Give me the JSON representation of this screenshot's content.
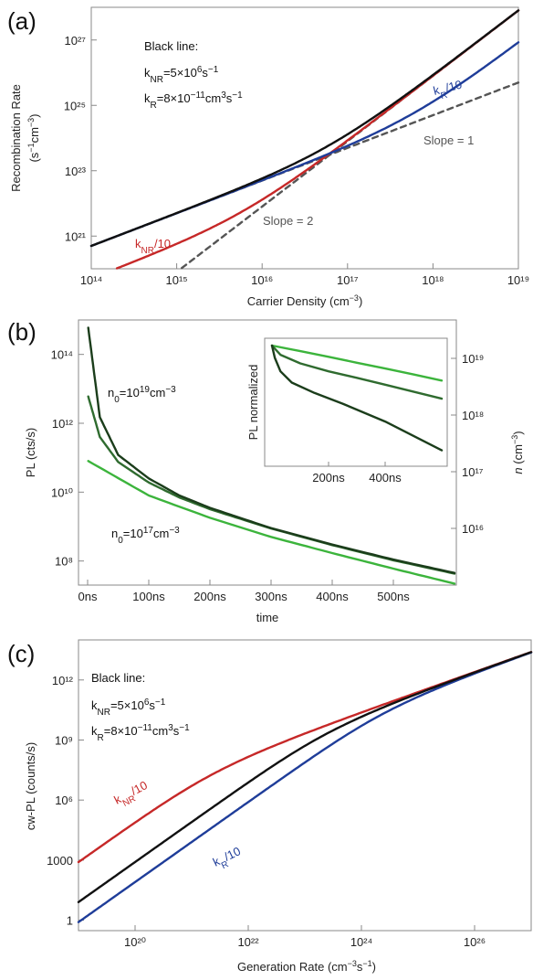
{
  "colors": {
    "black": "#111111",
    "red": "#c62828",
    "blue": "#1f3d99",
    "gray_dashed": "#555555",
    "green_dark": "#1b3d1b",
    "green_mid": "#2f6b2f",
    "green_light": "#3cb43c",
    "blue_dashed": "#5577bb"
  },
  "chart_data": [
    {
      "panel": "(a)",
      "type": "line",
      "xlabel": "Carrier Density (cm⁻³)",
      "ylabel_line1": "Recombination Rate",
      "ylabel_line2": "(s⁻¹cm⁻³)",
      "x_log": true,
      "y_log": true,
      "xlim": [
        100000000000000.0,
        1e+19
      ],
      "ylim": [
        1e+20,
        1e+28
      ],
      "x_ticks": [
        "10¹⁴",
        "10¹⁵",
        "10¹⁶",
        "10¹⁷",
        "10¹⁸",
        "10¹⁹"
      ],
      "y_ticks": [
        "10²¹",
        "10²³",
        "10²⁵",
        "10²⁷"
      ],
      "annotation_title": "Black line:",
      "annotation_knr": "kₙᵣ=5×10⁶s⁻¹",
      "annotation_kr": "kᵣ=8×10⁻¹¹cm³s⁻¹",
      "params": {
        "k_NR": 5000000.0,
        "k_R": 8e-11
      },
      "series": [
        {
          "name": "Black line",
          "formula": "k_NR*n + k_R*n^2",
          "color": "black"
        },
        {
          "name": "k_NR/10",
          "formula": "k_NR/10*n + k_R*n^2",
          "color": "red"
        },
        {
          "name": "k_R/10",
          "formula": "k_NR*n + k_R/10*n^2",
          "color": "blue"
        },
        {
          "name": "Slope = 1",
          "formula": "k_NR*n",
          "style": "dashed"
        },
        {
          "name": "Slope = 2",
          "formula": "k_R*n^2",
          "style": "dashed"
        }
      ],
      "labels": {
        "knr10": "kₙᵣ/10",
        "kr10": "kᵣ/10",
        "slope1": "Slope = 1",
        "slope2": "Slope = 2"
      }
    },
    {
      "panel": "(b)",
      "type": "line",
      "xlabel": "time",
      "ylabel": "PL (cts/s)",
      "y2label": "n (cm⁻³)",
      "xlim": [
        0,
        600
      ],
      "ylim": [
        20000000.0,
        1000000000000000.0
      ],
      "x_ticks": [
        "0ns",
        "100ns",
        "200ns",
        "300ns",
        "400ns",
        "500ns"
      ],
      "y_ticks": [
        "10⁸",
        "10¹⁰",
        "10¹²",
        "10¹⁴"
      ],
      "y2_ticks": [
        "10¹⁶",
        "10¹⁷",
        "10¹⁸",
        "10¹⁹"
      ],
      "label_high": "n₀=10¹⁹cm⁻³",
      "label_low": "n₀=10¹⁷cm⁻³",
      "series": [
        {
          "name": "n0=1e19",
          "x": [
            1,
            20,
            50,
            100,
            150,
            200,
            300,
            400,
            500,
            600
          ],
          "y": [
            600000000000000.0,
            1500000000000.0,
            120000000000.0,
            25000000000.0,
            8000000000.0,
            3500000000.0,
            900000000.0,
            300000000.0,
            110000000.0,
            45000000.0
          ],
          "color": "dark"
        },
        {
          "name": "n0=1e18",
          "x": [
            1,
            20,
            50,
            100,
            150,
            200,
            300,
            400,
            500,
            600
          ],
          "y": [
            6000000000000.0,
            400000000000.0,
            75000000000.0,
            19000000000.0,
            7000000000.0,
            3200000000.0,
            880000000.0,
            290000000.0,
            105000000.0,
            43000000.0
          ],
          "color": "mid"
        },
        {
          "name": "n0=1e17",
          "x": [
            1,
            100,
            200,
            300,
            400,
            500,
            600
          ],
          "y": [
            80000000000.0,
            8000000000.0,
            1800000000.0,
            500000000.0,
            170000000.0,
            60000000.0,
            22000000.0
          ],
          "color": "light"
        }
      ],
      "inset": {
        "ylabel": "PL normalized",
        "x_ticks": [
          "200ns",
          "400ns"
        ],
        "xlim": [
          0,
          600
        ],
        "series": [
          {
            "name": "n0=1e17",
            "x": [
              0,
              100,
              200,
              300,
              400,
              500,
              600
            ],
            "y": [
              1.0,
              0.86,
              0.74,
              0.63,
              0.54,
              0.46,
              0.39
            ]
          },
          {
            "name": "n0=1e18",
            "x": [
              0,
              30,
              100,
              200,
              300,
              400,
              500,
              600
            ],
            "y": [
              1.0,
              0.78,
              0.62,
              0.5,
              0.42,
              0.35,
              0.29,
              0.24
            ]
          },
          {
            "name": "n0=1e19",
            "x": [
              0,
              10,
              30,
              70,
              150,
              250,
              400,
              600
            ],
            "y": [
              1.0,
              0.72,
              0.5,
              0.37,
              0.28,
              0.21,
              0.13,
              0.06
            ]
          }
        ]
      }
    },
    {
      "panel": "(c)",
      "type": "line",
      "xlabel": "Generation Rate (cm⁻³s⁻¹)",
      "ylabel": "cw-PL (counts/s)",
      "x_log": true,
      "y_log": true,
      "xlim": [
        1e+19,
        1e+27
      ],
      "ylim": [
        0.3,
        100000000000000.0
      ],
      "x_ticks": [
        "10²⁰",
        "10²²",
        "10²⁴",
        "10²⁶"
      ],
      "y_ticks": [
        "1",
        "1000",
        "10⁶",
        "10⁹",
        "10¹²"
      ],
      "annotation_title": "Black line:",
      "annotation_knr": "kₙᵣ=5×10⁶s⁻¹",
      "annotation_kr": "kᵣ=8×10⁻¹¹cm³s⁻¹",
      "params": {
        "k_NR": 5000000.0,
        "k_R": 8e-11
      },
      "series": [
        {
          "name": "Black line",
          "color": "black"
        },
        {
          "name": "k_NR/10",
          "color": "red"
        },
        {
          "name": "k_R/10",
          "color": "blue"
        }
      ],
      "labels": {
        "knr10": "kₙᵣ/10",
        "kr10": "kᵣ/10"
      }
    }
  ]
}
